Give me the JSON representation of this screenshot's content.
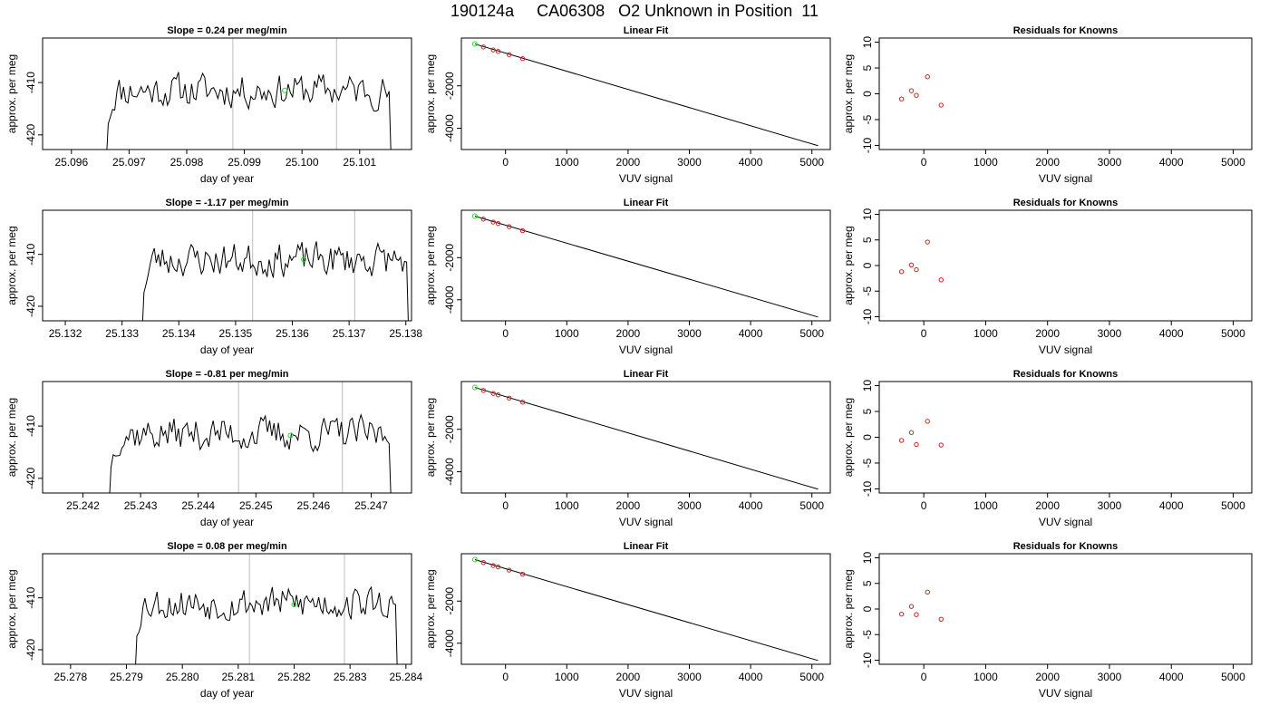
{
  "page_title": "190124a     CA06308   O2 Unknown in Position  11",
  "colors": {
    "line": "#000000",
    "green_point": "#22dd22",
    "red_point": "#cc2222",
    "vline": "#c8c8c8"
  },
  "chart_data": [
    {
      "type": "line",
      "row": 0,
      "col": 0,
      "title": "Slope =  0.24  per meg/min",
      "xlabel": "day of year",
      "ylabel": "approx. per meg",
      "xlim": [
        25.0955,
        25.1019
      ],
      "ylim": [
        -422.8,
        -401.5
      ],
      "xticks": [
        25.096,
        25.097,
        25.098,
        25.099,
        25.1,
        25.101
      ],
      "xtick_labels": [
        "25.096",
        "25.097",
        "25.098",
        "25.099",
        "25.100",
        "25.101"
      ],
      "yticks": [
        -410,
        -420
      ],
      "ytick_labels": [
        "-410",
        "-420"
      ],
      "x_start": 25.0966,
      "x_end": 25.10155,
      "base": -411.5,
      "seed": 11,
      "vlines": [
        25.0988,
        25.1006
      ],
      "highlight": {
        "x": 25.0997,
        "y": -411.5
      }
    },
    {
      "type": "scatter",
      "row": 0,
      "col": 1,
      "title": "Linear Fit",
      "xlabel": "VUV signal",
      "ylabel": "approx. per meg",
      "xlim": [
        -720,
        5300
      ],
      "ylim": [
        -5000,
        250
      ],
      "xticks": [
        0,
        1000,
        2000,
        3000,
        4000,
        5000
      ],
      "xtick_labels": [
        "0",
        "1000",
        "2000",
        "3000",
        "4000",
        "5000"
      ],
      "yticks": [
        -2000,
        -4000
      ],
      "ytick_labels": [
        "-2000",
        "-4000"
      ],
      "fit_line": [
        [
          -500,
          -30
        ],
        [
          5100,
          -4820
        ]
      ],
      "points": [
        [
          -360,
          -170
        ],
        [
          -200,
          -310
        ],
        [
          -120,
          -380
        ],
        [
          60,
          -530
        ],
        [
          280,
          -720
        ]
      ],
      "highlight": {
        "x": -500,
        "y": -30
      }
    },
    {
      "type": "scatter",
      "row": 0,
      "col": 2,
      "title": "Residuals for Knowns",
      "xlabel": "VUV signal",
      "ylabel": "approx. per meg",
      "xlim": [
        -720,
        5300
      ],
      "ylim": [
        -10.8,
        10.8
      ],
      "xticks": [
        0,
        1000,
        2000,
        3000,
        4000,
        5000
      ],
      "xtick_labels": [
        "0",
        "1000",
        "2000",
        "3000",
        "4000",
        "5000"
      ],
      "yticks": [
        10,
        5,
        0,
        -5,
        -10
      ],
      "ytick_labels": [
        "10",
        "5",
        "0",
        "-5",
        "-10"
      ],
      "points": [
        [
          -360,
          -1.0
        ],
        [
          -200,
          0.6
        ],
        [
          -120,
          -0.3
        ],
        [
          60,
          3.3
        ],
        [
          280,
          -2.2
        ]
      ]
    },
    {
      "type": "line",
      "row": 1,
      "col": 0,
      "title": "Slope =  -1.17  per meg/min",
      "xlabel": "day of year",
      "ylabel": "approx. per meg",
      "xlim": [
        25.1316,
        25.1381
      ],
      "ylim": [
        -422.8,
        -401.5
      ],
      "xticks": [
        25.132,
        25.133,
        25.134,
        25.135,
        25.136,
        25.137,
        25.138
      ],
      "xtick_labels": [
        "25.132",
        "25.133",
        "25.134",
        "25.135",
        "25.136",
        "25.137",
        "25.138"
      ],
      "yticks": [
        -410,
        -420
      ],
      "ytick_labels": [
        "-410",
        "-420"
      ],
      "x_start": 25.13335,
      "x_end": 25.13805,
      "base": -411.0,
      "seed": 23,
      "vlines": [
        25.1353,
        25.1371
      ],
      "highlight": {
        "x": 25.1362,
        "y": -411.0
      }
    },
    {
      "type": "scatter",
      "row": 1,
      "col": 1,
      "title": "Linear Fit",
      "xlabel": "VUV signal",
      "ylabel": "approx. per meg",
      "xlim": [
        -720,
        5300
      ],
      "ylim": [
        -5000,
        250
      ],
      "xticks": [
        0,
        1000,
        2000,
        3000,
        4000,
        5000
      ],
      "xtick_labels": [
        "0",
        "1000",
        "2000",
        "3000",
        "4000",
        "5000"
      ],
      "yticks": [
        -2000,
        -4000
      ],
      "ytick_labels": [
        "-2000",
        "-4000"
      ],
      "fit_line": [
        [
          -500,
          -30
        ],
        [
          5100,
          -4820
        ]
      ],
      "points": [
        [
          -360,
          -170
        ],
        [
          -200,
          -310
        ],
        [
          -120,
          -380
        ],
        [
          60,
          -530
        ],
        [
          280,
          -720
        ]
      ],
      "highlight": {
        "x": -500,
        "y": -30
      }
    },
    {
      "type": "scatter",
      "row": 1,
      "col": 2,
      "title": "Residuals for Knowns",
      "xlabel": "VUV signal",
      "ylabel": "approx. per meg",
      "xlim": [
        -720,
        5300
      ],
      "ylim": [
        -10.8,
        10.8
      ],
      "xticks": [
        0,
        1000,
        2000,
        3000,
        4000,
        5000
      ],
      "xtick_labels": [
        "0",
        "1000",
        "2000",
        "3000",
        "4000",
        "5000"
      ],
      "yticks": [
        10,
        5,
        0,
        -5,
        -10
      ],
      "ytick_labels": [
        "10",
        "5",
        "0",
        "-5",
        "-10"
      ],
      "points": [
        [
          -360,
          -1.2
        ],
        [
          -200,
          0.1
        ],
        [
          -120,
          -0.8
        ],
        [
          60,
          4.6
        ],
        [
          280,
          -2.8
        ]
      ]
    },
    {
      "type": "line",
      "row": 2,
      "col": 0,
      "title": "Slope =  -0.81  per meg/min",
      "xlabel": "day of year",
      "ylabel": "approx. per meg",
      "xlim": [
        25.2413,
        25.2477
      ],
      "ylim": [
        -422.8,
        -401.5
      ],
      "xticks": [
        25.242,
        25.243,
        25.244,
        25.245,
        25.246,
        25.247
      ],
      "xtick_labels": [
        "25.242",
        "25.243",
        "25.244",
        "25.245",
        "25.246",
        "25.247"
      ],
      "yticks": [
        -410,
        -420
      ],
      "ytick_labels": [
        "-410",
        "-420"
      ],
      "x_start": 25.24245,
      "x_end": 25.24735,
      "base": -411.5,
      "seed": 37,
      "vlines": [
        25.2447,
        25.2465
      ],
      "highlight": {
        "x": 25.2456,
        "y": -411.8
      }
    },
    {
      "type": "scatter",
      "row": 2,
      "col": 1,
      "title": "Linear Fit",
      "xlabel": "VUV signal",
      "ylabel": "approx. per meg",
      "xlim": [
        -720,
        5300
      ],
      "ylim": [
        -5000,
        250
      ],
      "xticks": [
        0,
        1000,
        2000,
        3000,
        4000,
        5000
      ],
      "xtick_labels": [
        "0",
        "1000",
        "2000",
        "3000",
        "4000",
        "5000"
      ],
      "yticks": [
        -2000,
        -4000
      ],
      "ytick_labels": [
        "-2000",
        "-4000"
      ],
      "fit_line": [
        [
          -500,
          -30
        ],
        [
          5100,
          -4820
        ]
      ],
      "points": [
        [
          -360,
          -170
        ],
        [
          -200,
          -310
        ],
        [
          -120,
          -380
        ],
        [
          60,
          -530
        ],
        [
          280,
          -720
        ]
      ],
      "highlight": {
        "x": -500,
        "y": -30
      }
    },
    {
      "type": "scatter",
      "row": 2,
      "col": 2,
      "title": "Residuals for Knowns",
      "xlabel": "VUV signal",
      "ylabel": "approx. per meg",
      "xlim": [
        -720,
        5300
      ],
      "ylim": [
        -10.8,
        10.8
      ],
      "xticks": [
        0,
        1000,
        2000,
        3000,
        4000,
        5000
      ],
      "xtick_labels": [
        "0",
        "1000",
        "2000",
        "3000",
        "4000",
        "5000"
      ],
      "yticks": [
        10,
        5,
        0,
        -5,
        -10
      ],
      "ytick_labels": [
        "10",
        "5",
        "0",
        "-5",
        "-10"
      ],
      "points": [
        [
          -360,
          -0.6
        ],
        [
          -200,
          0.9
        ],
        [
          -120,
          -1.4
        ],
        [
          60,
          3.1
        ],
        [
          280,
          -1.5
        ]
      ]
    },
    {
      "type": "line",
      "row": 3,
      "col": 0,
      "title": "Slope =  0.08  per meg/min",
      "xlabel": "day of year",
      "ylabel": "approx. per meg",
      "xlim": [
        25.2775,
        25.2841
      ],
      "ylim": [
        -422.8,
        -401.5
      ],
      "xticks": [
        25.278,
        25.279,
        25.28,
        25.281,
        25.282,
        25.283,
        25.284
      ],
      "xtick_labels": [
        "25.278",
        "25.279",
        "25.280",
        "25.281",
        "25.282",
        "25.283",
        "25.284"
      ],
      "yticks": [
        -410,
        -420
      ],
      "ytick_labels": [
        "-410",
        "-420"
      ],
      "x_start": 25.27915,
      "x_end": 25.28385,
      "base": -411.0,
      "seed": 53,
      "vlines": [
        25.2812,
        25.2829
      ],
      "highlight": {
        "x": 25.282,
        "y": -411.3
      }
    },
    {
      "type": "scatter",
      "row": 3,
      "col": 1,
      "title": "Linear Fit",
      "xlabel": "VUV signal",
      "ylabel": "approx. per meg",
      "xlim": [
        -720,
        5300
      ],
      "ylim": [
        -5000,
        250
      ],
      "xticks": [
        0,
        1000,
        2000,
        3000,
        4000,
        5000
      ],
      "xtick_labels": [
        "0",
        "1000",
        "2000",
        "3000",
        "4000",
        "5000"
      ],
      "yticks": [
        -2000,
        -4000
      ],
      "ytick_labels": [
        "-2000",
        "-4000"
      ],
      "fit_line": [
        [
          -500,
          -30
        ],
        [
          5100,
          -4820
        ]
      ],
      "points": [
        [
          -360,
          -170
        ],
        [
          -200,
          -310
        ],
        [
          -120,
          -380
        ],
        [
          60,
          -530
        ],
        [
          280,
          -720
        ]
      ],
      "highlight": {
        "x": -500,
        "y": -30
      }
    },
    {
      "type": "scatter",
      "row": 3,
      "col": 2,
      "title": "Residuals for Knowns",
      "xlabel": "VUV signal",
      "ylabel": "approx. per meg",
      "xlim": [
        -720,
        5300
      ],
      "ylim": [
        -10.8,
        10.8
      ],
      "xticks": [
        0,
        1000,
        2000,
        3000,
        4000,
        5000
      ],
      "xtick_labels": [
        "0",
        "1000",
        "2000",
        "3000",
        "4000",
        "5000"
      ],
      "yticks": [
        10,
        5,
        0,
        -5,
        -10
      ],
      "ytick_labels": [
        "10",
        "5",
        "0",
        "-5",
        "-10"
      ],
      "points": [
        [
          -360,
          -1.0
        ],
        [
          -200,
          0.5
        ],
        [
          -120,
          -1.1
        ],
        [
          60,
          3.3
        ],
        [
          280,
          -2.0
        ]
      ]
    }
  ]
}
